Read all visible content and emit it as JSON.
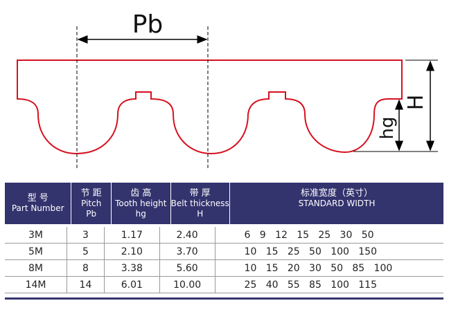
{
  "diagram": {
    "pitch_label": "Pb",
    "height_label": "H",
    "tooth_height_label": "hg"
  },
  "table": {
    "header": [
      [
        "型 号",
        "Part Number"
      ],
      [
        "节 距",
        "Pitch",
        "Pb"
      ],
      [
        "齿 高",
        "Tooth height",
        "hg"
      ],
      [
        "带 厚",
        "Belt thickness",
        "H"
      ],
      [
        "标准宽度（英寸）",
        "STANDARD WIDTH"
      ]
    ],
    "rows": [
      [
        "3M",
        "3",
        "1.17",
        "2.40",
        "6   9   12   15   25   30   50"
      ],
      [
        "5M",
        "5",
        "2.10",
        "3.70",
        "10   15   25   50   100   150"
      ],
      [
        "8M",
        "8",
        "3.38",
        "5.60",
        "10   15   20   30   50   85   100"
      ],
      [
        "14M",
        "14",
        "6.01",
        "10.00",
        "25   40   55   85   100   115"
      ]
    ]
  }
}
